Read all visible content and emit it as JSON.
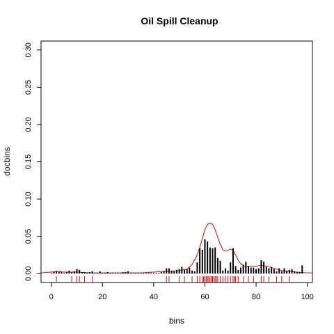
{
  "chart_data": {
    "type": "bar",
    "title": "Oil Spill Cleanup",
    "xlabel": "bins",
    "ylabel": "docbins",
    "xlim": [
      -4,
      102
    ],
    "ylim": [
      -0.012,
      0.312
    ],
    "x_ticks": [
      0,
      20,
      40,
      60,
      80,
      100
    ],
    "y_ticks": [
      0.0,
      0.05,
      0.1,
      0.15,
      0.2,
      0.25,
      0.3
    ],
    "y_tick_labels": [
      "0.00",
      "0.05",
      "0.10",
      "0.15",
      "0.20",
      "0.25",
      "0.30"
    ],
    "box": true,
    "grid": false,
    "colors": {
      "bars": "#000000",
      "density": "#e00000",
      "rug": "#e00000"
    },
    "bars": {
      "x": [
        0,
        1,
        2,
        3,
        4,
        5,
        6,
        7,
        8,
        9,
        10,
        11,
        12,
        13,
        14,
        15,
        16,
        17,
        18,
        19,
        20,
        21,
        22,
        23,
        24,
        25,
        26,
        27,
        28,
        29,
        30,
        31,
        32,
        33,
        34,
        35,
        36,
        37,
        38,
        39,
        40,
        41,
        42,
        43,
        44,
        45,
        46,
        47,
        48,
        49,
        50,
        51,
        52,
        53,
        54,
        55,
        56,
        57,
        58,
        59,
        60,
        61,
        62,
        63,
        64,
        65,
        66,
        67,
        68,
        69,
        70,
        71,
        72,
        73,
        74,
        75,
        76,
        77,
        78,
        79,
        80,
        81,
        82,
        83,
        84,
        85,
        86,
        87,
        88,
        89,
        90,
        91,
        92,
        93,
        94,
        95,
        96,
        97,
        98
      ],
      "y": [
        0.001,
        0.002,
        0.003,
        0.002,
        0.002,
        0.001,
        0.002,
        0.004,
        0.002,
        0.003,
        0.006,
        0.005,
        0.002,
        0.002,
        0.001,
        0.002,
        0.003,
        0.001,
        0.001,
        0.003,
        0.001,
        0.001,
        0.002,
        0.001,
        0.001,
        0.001,
        0.001,
        0.001,
        0.002,
        0.002,
        0.003,
        0.001,
        0.001,
        0.001,
        0.001,
        0.001,
        0.001,
        0.001,
        0.001,
        0.001,
        0.001,
        0.001,
        0.001,
        0.002,
        0.003,
        0.007,
        0.007,
        0.004,
        0.003,
        0.005,
        0.006,
        0.009,
        0.005,
        0.006,
        0.008,
        0.004,
        0.003,
        0.015,
        0.034,
        0.032,
        0.046,
        0.043,
        0.035,
        0.034,
        0.035,
        0.021,
        0.017,
        0.004,
        0.007,
        0.004,
        0.015,
        0.034,
        0.01,
        0.005,
        0.008,
        0.012,
        0.016,
        0.01,
        0.008,
        0.008,
        0.006,
        0.007,
        0.018,
        0.016,
        0.009,
        0.007,
        0.009,
        0.006,
        0.003,
        0.007,
        0.003,
        0.007,
        0.004,
        0.005,
        0.006,
        0.003,
        0.002,
        0.002,
        0.011
      ]
    },
    "density": {
      "x": [
        -4,
        0,
        2,
        5,
        8,
        10,
        15,
        20,
        25,
        30,
        35,
        40,
        44,
        46,
        50,
        53,
        55,
        57,
        58,
        59,
        60,
        61,
        62,
        63,
        64,
        65,
        66,
        67,
        68,
        69,
        70,
        71,
        72,
        73,
        74,
        75,
        76,
        78,
        80,
        82,
        84,
        86,
        88,
        90,
        93,
        96,
        100,
        102
      ],
      "y": [
        0.001,
        0.002,
        0.003,
        0.002,
        0.002,
        0.002,
        0.001,
        0.001,
        0.001,
        0.001,
        0.001,
        0.002,
        0.003,
        0.003,
        0.004,
        0.006,
        0.012,
        0.025,
        0.035,
        0.047,
        0.059,
        0.066,
        0.068,
        0.066,
        0.059,
        0.049,
        0.039,
        0.032,
        0.03,
        0.031,
        0.033,
        0.031,
        0.025,
        0.018,
        0.013,
        0.011,
        0.009,
        0.009,
        0.01,
        0.011,
        0.01,
        0.008,
        0.006,
        0.004,
        0.003,
        0.002,
        0.001,
        0.001
      ]
    },
    "rug": [
      2,
      8,
      10,
      11,
      13,
      16,
      45,
      46,
      50,
      52,
      55,
      57,
      58,
      59,
      59.5,
      60,
      60.5,
      61,
      61.5,
      62,
      62.5,
      63,
      63.5,
      64,
      64.5,
      65,
      66,
      67,
      68,
      69,
      70,
      71,
      71.5,
      72,
      73,
      75,
      77,
      79,
      82,
      83,
      85,
      88,
      90,
      93
    ]
  }
}
